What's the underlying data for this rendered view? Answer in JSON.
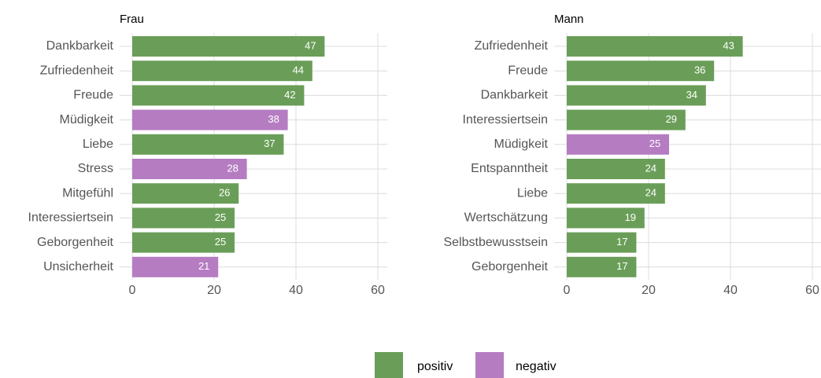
{
  "chart_data": [
    {
      "type": "bar",
      "orientation": "horizontal",
      "title": "Frau",
      "categories": [
        "Dankbarkeit",
        "Zufriedenheit",
        "Freude",
        "Müdigkeit",
        "Liebe",
        "Stress",
        "Mitgefühl",
        "Interessiertsein",
        "Geborgenheit",
        "Unsicherheit"
      ],
      "values": [
        47,
        44,
        42,
        38,
        37,
        28,
        26,
        25,
        25,
        21
      ],
      "colors": [
        "#6a9e58",
        "#6a9e58",
        "#6a9e58",
        "#b57cc2",
        "#6a9e58",
        "#b57cc2",
        "#6a9e58",
        "#6a9e58",
        "#6a9e58",
        "#b57cc2"
      ],
      "xlim": [
        0,
        60
      ],
      "xticks": [
        0,
        20,
        40,
        60
      ],
      "grid": true
    },
    {
      "type": "bar",
      "orientation": "horizontal",
      "title": "Mann",
      "categories": [
        "Zufriedenheit",
        "Freude",
        "Dankbarkeit",
        "Interessiertsein",
        "Müdigkeit",
        "Entspanntheit",
        "Liebe",
        "Wertschätzung",
        "Selbstbewusstsein",
        "Geborgenheit"
      ],
      "values": [
        43,
        36,
        34,
        29,
        25,
        24,
        24,
        19,
        17,
        17
      ],
      "colors": [
        "#6a9e58",
        "#6a9e58",
        "#6a9e58",
        "#6a9e58",
        "#b57cc2",
        "#6a9e58",
        "#6a9e58",
        "#6a9e58",
        "#6a9e58",
        "#6a9e58"
      ],
      "xlim": [
        0,
        60
      ],
      "xticks": [
        0,
        20,
        40,
        60
      ],
      "grid": true
    }
  ],
  "legend": [
    {
      "name": "positiv",
      "color": "#6a9e58"
    },
    {
      "name": "negativ",
      "color": "#b57cc2"
    }
  ]
}
